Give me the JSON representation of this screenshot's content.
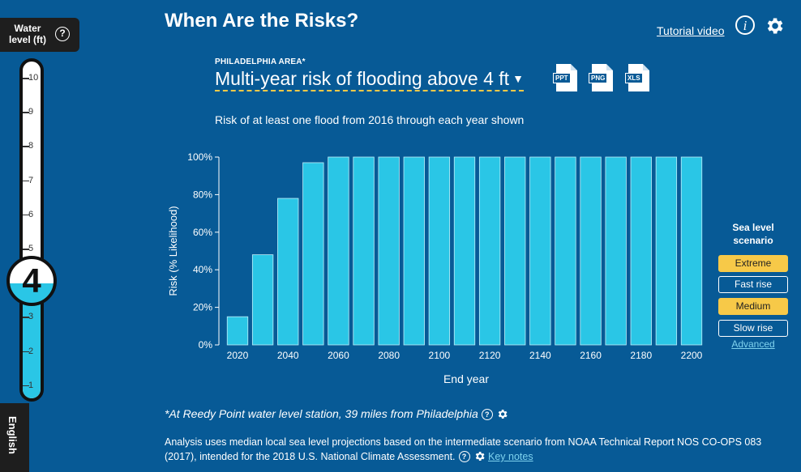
{
  "water_level": {
    "title": "Water level (ft)",
    "help_symbol": "?",
    "value": "4",
    "fill_fraction": 0.35,
    "ticks": [
      "10",
      "9",
      "8",
      "7",
      "6",
      "5",
      "4",
      "3",
      "2",
      "1"
    ]
  },
  "language": {
    "label": "English"
  },
  "header": {
    "title": "When Are the Risks?",
    "tutorial_link": "Tutorial video",
    "info_symbol": "i"
  },
  "selector": {
    "area_label": "PHILADELPHIA AREA*",
    "selected": "Multi-year risk of flooding above 4 ft"
  },
  "exports": [
    {
      "label": "PPT"
    },
    {
      "label": "PNG"
    },
    {
      "label": "XLS"
    }
  ],
  "chart_subtitle": "Risk of at least one flood from 2016 through each year shown",
  "chart_data": {
    "type": "bar",
    "categories": [
      "2020",
      "2030",
      "2040",
      "2050",
      "2060",
      "2070",
      "2080",
      "2090",
      "2100",
      "2110",
      "2120",
      "2130",
      "2140",
      "2150",
      "2160",
      "2170",
      "2180",
      "2190",
      "2200"
    ],
    "values": [
      15,
      48,
      78,
      97,
      100,
      100,
      100,
      100,
      100,
      100,
      100,
      100,
      100,
      100,
      100,
      100,
      100,
      100,
      100
    ],
    "x_tick_labels": [
      "2020",
      "2040",
      "2060",
      "2080",
      "2100",
      "2120",
      "2140",
      "2160",
      "2180",
      "2200"
    ],
    "y_tick_labels": [
      "0%",
      "20%",
      "40%",
      "60%",
      "80%",
      "100%"
    ],
    "xlabel": "End year",
    "ylabel": "Risk (% Likelihood)",
    "ylim": [
      0,
      100
    ],
    "bar_color": "#2ac6e6",
    "grid": false
  },
  "scenarios": {
    "heading": "Sea level scenario",
    "options": [
      {
        "label": "Extreme",
        "active": true
      },
      {
        "label": "Fast rise",
        "active": false
      },
      {
        "label": "Medium",
        "active": true
      },
      {
        "label": "Slow rise",
        "active": false
      }
    ],
    "advanced_link": "Advanced"
  },
  "footnotes": {
    "station": "*At Reedy Point water level station, 39 miles from Philadelphia",
    "analysis": "Analysis uses median local sea level projections based on the intermediate scenario from NOAA Technical Report NOS CO-OPS 083 (2017), intended for the 2018 U.S. National Climate Assessment.",
    "key_notes_link": "Key notes",
    "help_symbol": "?"
  },
  "colors": {
    "background": "#075a96",
    "accent_yellow": "#f7c948",
    "water_cyan": "#2ac6e6",
    "link_cyan": "#7ed2ee"
  }
}
